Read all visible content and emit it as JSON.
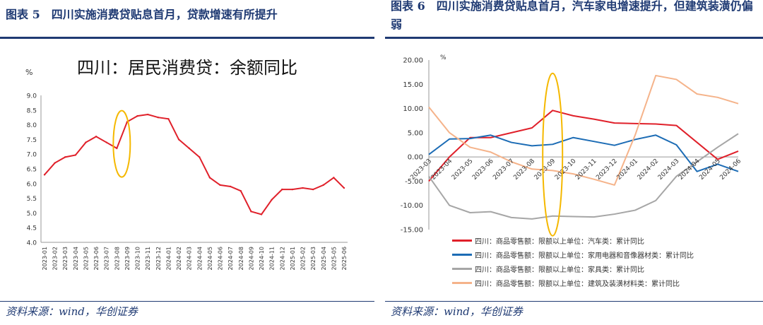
{
  "left": {
    "fig_title": "图表 5　四川实施消费贷贴息首月，贷款增速有所提升",
    "source": "资料来源：wind，华创证券",
    "chart_data": {
      "type": "line",
      "title": "四川：居民消费贷：余额同比",
      "ylabel": "%",
      "ylim": [
        4.0,
        9.0
      ],
      "yticks": [
        "4.0",
        "4.5",
        "5.0",
        "5.5",
        "6.0",
        "6.5",
        "7.0",
        "7.5",
        "8.0",
        "8.5",
        "9.0"
      ],
      "grid": false,
      "categories": [
        "2023-01",
        "2023-02",
        "2023-03",
        "2023-04",
        "2023-05",
        "2023-06",
        "2023-07",
        "2023-08",
        "2023-09",
        "2023-10",
        "2023-11",
        "2023-12",
        "2024-01",
        "2024-02",
        "2024-03",
        "2024-04",
        "2024-05",
        "2024-06",
        "2024-07",
        "2024-08",
        "2024-09",
        "2024-10",
        "2024-11",
        "2024-12",
        "2025-01",
        "2025-02",
        "2025-03",
        "2025-04",
        "2025-05",
        "2025-06"
      ],
      "series": [
        {
          "color": "#e0202a",
          "values": [
            6.3,
            6.7,
            6.9,
            6.97,
            7.4,
            7.6,
            7.4,
            7.2,
            8.1,
            8.3,
            8.35,
            8.25,
            8.2,
            7.5,
            7.2,
            6.9,
            6.2,
            5.95,
            5.9,
            5.75,
            5.05,
            4.95,
            5.45,
            5.8,
            5.8,
            5.85,
            5.8,
            5.95,
            6.2,
            5.85
          ]
        }
      ],
      "annotation": {
        "shape": "ellipse",
        "color": "#f5b800",
        "at_category": "2023-08"
      }
    }
  },
  "right": {
    "fig_title": "图表 6　四川实施消费贷贴息首月，汽车家电增速提升，但建筑装潢仍偏弱",
    "source": "资料来源：wind，华创证券",
    "chart_data": {
      "type": "line",
      "ylabel": "%",
      "ylim": [
        -15,
        20
      ],
      "yticks": [
        "20.00",
        "15.00",
        "10.00",
        "5.00",
        "0.00",
        "-5.00",
        "-10.00",
        "-15.00"
      ],
      "grid": false,
      "categories": [
        "2023-03",
        "2023-04",
        "2023-05",
        "2023-06",
        "2023-07",
        "2023-08",
        "2023-09",
        "2023-10",
        "2023-11",
        "2023-12",
        "2024-01",
        "2024-02",
        "2024-03",
        "2024-04",
        "2024-05",
        "2024-06"
      ],
      "series": [
        {
          "name": "四川：商品零售额：限额以上单位：汽车类：累计同比",
          "color": "#e0202a",
          "values": [
            -5,
            0,
            4,
            4,
            5,
            6,
            9.6,
            8.5,
            7.8,
            7,
            6.9,
            6.8,
            6.5,
            3,
            -0.5,
            1.2
          ]
        },
        {
          "name": "四川：商品零售额：限额以上单位：家用电器和音像器材类：累计同比",
          "color": "#1c6cb5",
          "values": [
            0.5,
            3.7,
            3.8,
            4.5,
            3,
            2.3,
            2.6,
            4,
            3.2,
            2.4,
            3.6,
            4.5,
            2.5,
            -3,
            -1.5,
            -3
          ]
        },
        {
          "name": "四川：商品零售额：限额以上单位：家具类：累计同比",
          "color": "#a6a6a6",
          "values": [
            -4,
            -10,
            -11.5,
            -11.3,
            -12.5,
            -12.8,
            -12.2,
            -12.3,
            -12.4,
            -11.8,
            -11,
            -9,
            -4,
            -1,
            2,
            4.8
          ]
        },
        {
          "name": "四川：商品零售额：限额以上单位：建筑及装潢材料类：累计同比",
          "color": "#f5b38a",
          "values": [
            10.3,
            5,
            2,
            1,
            -1,
            -2.5,
            -2.8,
            -3.5,
            -4.6,
            -5.8,
            4.5,
            16.8,
            16,
            13,
            12.3,
            11
          ]
        }
      ],
      "annotation": {
        "shape": "ellipse",
        "color": "#f5b800",
        "at_category": "2023-09"
      }
    }
  }
}
